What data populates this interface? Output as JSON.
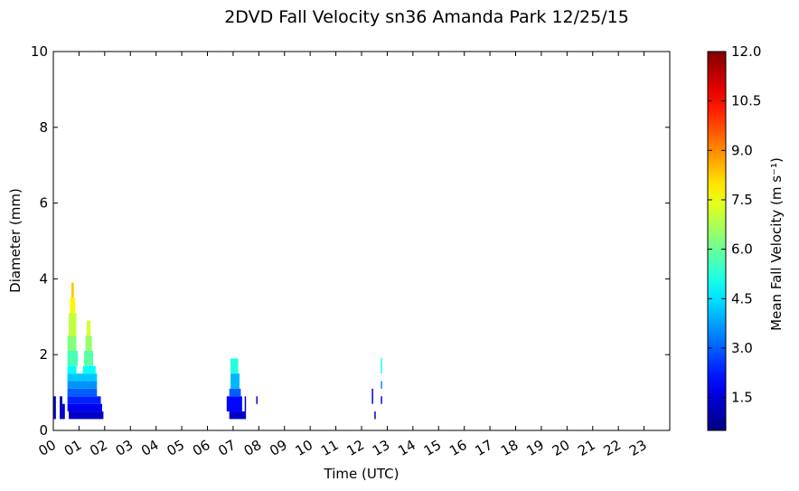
{
  "chart_data": {
    "type": "heatmap",
    "title": "2DVD Fall Velocity sn36 Amanda Park 12/25/15",
    "x_label": "Time (UTC)",
    "y_label": "Diameter (mm)",
    "colorbar_label": "Mean Fall Velocity (m s⁻¹)",
    "colormap": "jet",
    "xlim": [
      0,
      24
    ],
    "xticks": [
      {
        "value": 0,
        "label": "00"
      },
      {
        "value": 1,
        "label": "01"
      },
      {
        "value": 2,
        "label": "02"
      },
      {
        "value": 3,
        "label": "03"
      },
      {
        "value": 4,
        "label": "04"
      },
      {
        "value": 5,
        "label": "05"
      },
      {
        "value": 6,
        "label": "06"
      },
      {
        "value": 7,
        "label": "07"
      },
      {
        "value": 8,
        "label": "08"
      },
      {
        "value": 9,
        "label": "09"
      },
      {
        "value": 10,
        "label": "10"
      },
      {
        "value": 11,
        "label": "11"
      },
      {
        "value": 12,
        "label": "12"
      },
      {
        "value": 13,
        "label": "13"
      },
      {
        "value": 14,
        "label": "14"
      },
      {
        "value": 15,
        "label": "15"
      },
      {
        "value": 16,
        "label": "16"
      },
      {
        "value": 17,
        "label": "17"
      },
      {
        "value": 18,
        "label": "18"
      },
      {
        "value": 19,
        "label": "19"
      },
      {
        "value": 20,
        "label": "20"
      },
      {
        "value": 21,
        "label": "21"
      },
      {
        "value": 22,
        "label": "22"
      },
      {
        "value": 23,
        "label": "23"
      }
    ],
    "ylim": [
      0,
      10
    ],
    "yticks": [
      0,
      2,
      4,
      6,
      8,
      10
    ],
    "clim": [
      0.5,
      12
    ],
    "cticks": [
      1.5,
      {
        "value": 3,
        "label": "3.0"
      },
      4.5,
      {
        "value": 6,
        "label": "6.0"
      },
      7.5,
      {
        "value": 9,
        "label": "9.0"
      },
      10.5,
      {
        "value": 12,
        "label": "12.0"
      }
    ],
    "cells": [
      [
        0.0,
        0.1,
        0.3,
        0.9,
        1.2
      ],
      [
        0.25,
        0.35,
        0.3,
        0.9,
        1.2
      ],
      [
        0.35,
        0.45,
        0.3,
        0.7,
        1.4
      ],
      [
        0.6,
        1.95,
        0.3,
        0.5,
        1.3
      ],
      [
        0.55,
        1.9,
        0.5,
        0.7,
        1.8
      ],
      [
        0.55,
        1.85,
        0.7,
        0.9,
        2.3
      ],
      [
        0.55,
        1.7,
        0.9,
        1.1,
        3.0
      ],
      [
        0.55,
        1.7,
        1.1,
        1.3,
        3.6
      ],
      [
        0.55,
        1.7,
        1.3,
        1.5,
        4.2
      ],
      [
        0.55,
        0.9,
        1.5,
        1.7,
        4.8
      ],
      [
        1.15,
        1.65,
        1.5,
        1.7,
        4.9
      ],
      [
        0.55,
        0.95,
        1.7,
        2.1,
        5.6
      ],
      [
        1.2,
        1.55,
        1.7,
        2.1,
        5.8
      ],
      [
        0.55,
        0.9,
        2.1,
        2.5,
        6.3
      ],
      [
        1.25,
        1.5,
        2.1,
        2.5,
        6.5
      ],
      [
        0.6,
        0.9,
        2.5,
        3.1,
        7.0
      ],
      [
        1.3,
        1.45,
        2.5,
        2.9,
        7.2
      ],
      [
        0.65,
        0.85,
        3.1,
        3.5,
        7.8
      ],
      [
        0.7,
        0.8,
        3.5,
        3.9,
        8.3
      ],
      [
        6.85,
        7.5,
        0.3,
        0.5,
        1.3
      ],
      [
        6.75,
        7.35,
        0.5,
        0.9,
        2.0
      ],
      [
        6.85,
        7.3,
        0.9,
        1.1,
        3.0
      ],
      [
        6.9,
        7.25,
        1.1,
        1.5,
        4.0
      ],
      [
        6.9,
        7.2,
        1.5,
        1.9,
        5.2
      ],
      [
        7.45,
        7.5,
        0.5,
        0.9,
        1.5
      ],
      [
        7.9,
        7.95,
        0.7,
        0.9,
        1.5
      ],
      [
        12.4,
        12.45,
        0.7,
        1.1,
        1.8
      ],
      [
        12.5,
        12.55,
        0.3,
        0.5,
        1.3
      ],
      [
        12.75,
        12.8,
        0.7,
        0.9,
        2.0
      ],
      [
        12.75,
        12.8,
        1.1,
        1.3,
        3.5
      ],
      [
        12.75,
        12.8,
        1.5,
        1.9,
        5.0
      ]
    ]
  }
}
